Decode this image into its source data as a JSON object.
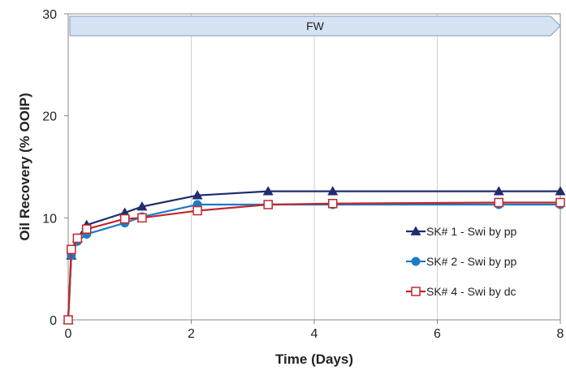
{
  "chart_data": {
    "type": "line",
    "title": "",
    "xlabel": "Time (Days)",
    "ylabel": "Oil Recovery (% OOIP)",
    "xlim": [
      0,
      8
    ],
    "ylim": [
      0,
      30
    ],
    "xticks": [
      0,
      2,
      4,
      6,
      8
    ],
    "yticks": [
      0,
      10,
      20,
      30
    ],
    "grid": "vertical",
    "legend_position": "bottom-right",
    "banner": {
      "label": "FW",
      "x_start": 0,
      "x_end": 8
    },
    "series": [
      {
        "name": "SK# 1 - Swi by pp",
        "color": "#1f2d6e",
        "marker": "triangle",
        "x": [
          0,
          0.05,
          0.15,
          0.3,
          0.92,
          1.2,
          2.1,
          3.25,
          4.3,
          7.0,
          8.0
        ],
        "y": [
          0,
          6.3,
          8.0,
          9.3,
          10.5,
          11.1,
          12.2,
          12.6,
          12.6,
          12.6,
          12.6
        ]
      },
      {
        "name": "SK# 2 - Swi by pp",
        "color": "#1f7bc4",
        "marker": "circle",
        "x": [
          0,
          0.05,
          0.15,
          0.3,
          0.92,
          1.2,
          2.1,
          3.25,
          4.3,
          7.0,
          8.0
        ],
        "y": [
          0,
          6.3,
          7.7,
          8.4,
          9.5,
          10.1,
          11.3,
          11.3,
          11.3,
          11.3,
          11.3
        ]
      },
      {
        "name": "SK# 4 - Swi by dc",
        "color": "#c0282d",
        "marker": "square-open",
        "x": [
          0,
          0.05,
          0.15,
          0.3,
          0.92,
          1.2,
          2.1,
          3.25,
          4.3,
          7.0,
          8.0
        ],
        "y": [
          0,
          6.9,
          8.0,
          8.9,
          9.9,
          10.0,
          10.7,
          11.3,
          11.4,
          11.5,
          11.5
        ]
      }
    ]
  }
}
